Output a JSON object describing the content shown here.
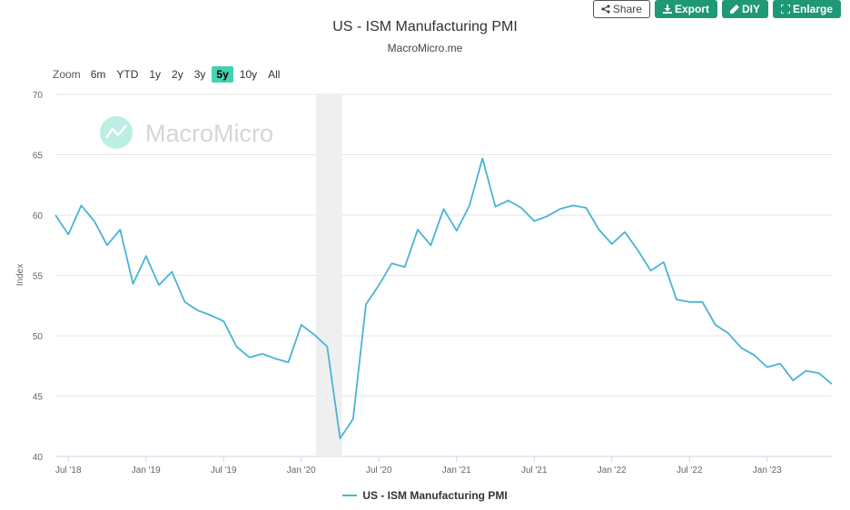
{
  "toolbar": {
    "share": "Share",
    "export": "Export",
    "diy": "DIY",
    "enlarge": "Enlarge"
  },
  "zoom": {
    "label": "Zoom",
    "options": [
      "6m",
      "YTD",
      "1y",
      "2y",
      "3y",
      "5y",
      "10y",
      "All"
    ],
    "active": "5y"
  },
  "watermark": "MacroMicro",
  "colors": {
    "line": "#4ab3d4",
    "button": "#1f9876",
    "zoom_active": "#45d1b2",
    "recession_band": "#efefef"
  },
  "chart_data": {
    "type": "line",
    "title": "US - ISM Manufacturing PMI",
    "subtitle": "MacroMicro.me",
    "ylabel": "Index",
    "ylim": [
      40,
      70
    ],
    "yticks": [
      40,
      45,
      50,
      55,
      60,
      65,
      70
    ],
    "xticks": [
      "Jul '18",
      "Jan '19",
      "Jul '19",
      "Jan '20",
      "Jul '20",
      "Jan '21",
      "Jul '21",
      "Jan '22",
      "Jul '22",
      "Jan '23"
    ],
    "grid": "horizontal",
    "legend": "bottom-center",
    "shaded_period": {
      "label": "recession",
      "from": "2020-02",
      "to": "2020-04"
    },
    "series": [
      {
        "name": "US - ISM Manufacturing PMI",
        "x": [
          "2018-06",
          "2018-07",
          "2018-08",
          "2018-09",
          "2018-10",
          "2018-11",
          "2018-12",
          "2019-01",
          "2019-02",
          "2019-03",
          "2019-04",
          "2019-05",
          "2019-06",
          "2019-07",
          "2019-08",
          "2019-09",
          "2019-10",
          "2019-11",
          "2019-12",
          "2020-01",
          "2020-02",
          "2020-03",
          "2020-04",
          "2020-05",
          "2020-06",
          "2020-07",
          "2020-08",
          "2020-09",
          "2020-10",
          "2020-11",
          "2020-12",
          "2021-01",
          "2021-02",
          "2021-03",
          "2021-04",
          "2021-05",
          "2021-06",
          "2021-07",
          "2021-08",
          "2021-09",
          "2021-10",
          "2021-11",
          "2021-12",
          "2022-01",
          "2022-02",
          "2022-03",
          "2022-04",
          "2022-05",
          "2022-06",
          "2022-07",
          "2022-08",
          "2022-09",
          "2022-10",
          "2022-11",
          "2022-12",
          "2023-01",
          "2023-02",
          "2023-03",
          "2023-04",
          "2023-05",
          "2023-06"
        ],
        "values": [
          60.0,
          58.4,
          60.8,
          59.5,
          57.5,
          58.8,
          54.3,
          56.6,
          54.2,
          55.3,
          52.8,
          52.1,
          51.7,
          51.2,
          49.1,
          48.2,
          48.5,
          48.1,
          47.8,
          50.9,
          50.1,
          49.1,
          41.5,
          43.1,
          52.6,
          54.2,
          56.0,
          55.7,
          58.8,
          57.5,
          60.5,
          58.7,
          60.8,
          64.7,
          60.7,
          61.2,
          60.6,
          59.5,
          59.9,
          60.5,
          60.8,
          60.6,
          58.8,
          57.6,
          58.6,
          57.1,
          55.4,
          56.1,
          53.0,
          52.8,
          52.8,
          50.9,
          50.2,
          49.0,
          48.4,
          47.4,
          47.7,
          46.3,
          47.1,
          46.9,
          46.0
        ]
      }
    ]
  }
}
